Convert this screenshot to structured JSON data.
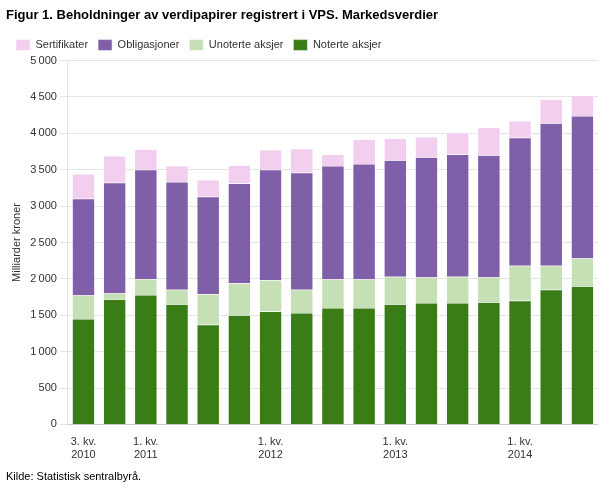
{
  "chart_data": {
    "type": "bar",
    "title": "Figur 1. Beholdninger av verdipapirer registrert i VPS. Markedsverdier",
    "ylabel": "Milliarder kroner",
    "annotations": [
      "Kilde: Statistisk sentralbyrå."
    ],
    "categories": [
      "3. kv.\n2010",
      null,
      "1. kv.\n2011",
      null,
      null,
      null,
      "1. kv.\n2012",
      null,
      null,
      null,
      "1. kv.\n2013",
      null,
      null,
      null,
      "1. kv.\n2014",
      null,
      null
    ],
    "series": [
      {
        "name": "Noterte aksjer",
        "color": "#3a7d17",
        "values": [
          1450,
          1720,
          1780,
          1650,
          1370,
          1500,
          1550,
          1530,
          1600,
          1600,
          1650,
          1670,
          1670,
          1680,
          1700,
          1850,
          1900
        ]
      },
      {
        "name": "Unoterte aksjer",
        "color": "#c5e0b4",
        "values": [
          320,
          80,
          220,
          200,
          420,
          440,
          430,
          320,
          390,
          390,
          380,
          350,
          360,
          340,
          480,
          330,
          380
        ]
      },
      {
        "name": "Obligasjoner",
        "color": "#7f5fa8",
        "values": [
          1330,
          1520,
          1500,
          1480,
          1340,
          1370,
          1520,
          1610,
          1560,
          1590,
          1600,
          1650,
          1680,
          1680,
          1760,
          1960,
          1960
        ]
      },
      {
        "name": "Sertifikater",
        "color": "#f2ceef",
        "values": [
          340,
          370,
          280,
          220,
          230,
          250,
          270,
          330,
          160,
          340,
          300,
          280,
          300,
          380,
          230,
          330,
          280
        ]
      }
    ],
    "stacked": true,
    "ylim": [
      0,
      5000
    ],
    "yticks": [
      0,
      500,
      {
        "value": 1000,
        "label": "1 000"
      },
      {
        "value": 1500,
        "label": "1 500"
      },
      {
        "value": 2000,
        "label": "2 000"
      },
      {
        "value": 2500,
        "label": "2 500"
      },
      {
        "value": 3000,
        "label": "3 000"
      },
      {
        "value": 3500,
        "label": "3 500"
      },
      {
        "value": 4000,
        "label": "4 000"
      },
      {
        "value": 4500,
        "label": "4 500"
      },
      {
        "value": 5000,
        "label": "5 000"
      }
    ],
    "grid": true,
    "legend": "upper left"
  }
}
